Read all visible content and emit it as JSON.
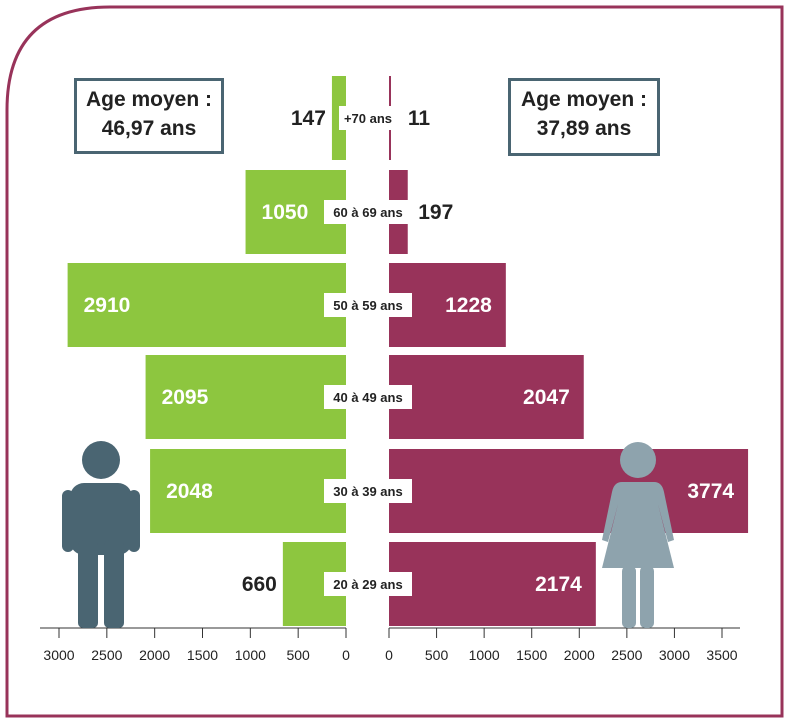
{
  "men": {
    "average_label": "Age moyen :",
    "average_value": "46,97 ans"
  },
  "women": {
    "average_label": "Age moyen :",
    "average_value": "37,89 ans"
  },
  "colors": {
    "men": "#8dc63f",
    "women": "#98335a",
    "frame": "#98335a",
    "box_border": "#4a6572",
    "men_icon": "#4a6572",
    "women_icon": "#8ea3ad"
  },
  "icons": {
    "men": "man-icon",
    "women": "woman-icon"
  },
  "chart_data": {
    "type": "bar",
    "orientation": "horizontal",
    "categories": [
      "+70 ans",
      "60 à 69 ans",
      "50 à 59 ans",
      "40 à 49 ans",
      "30 à 39 ans",
      "20 à 29 ans"
    ],
    "series": [
      {
        "side": "left",
        "values": [
          147,
          1050,
          2910,
          2095,
          2048,
          660
        ]
      },
      {
        "side": "right",
        "values": [
          11,
          197,
          1228,
          2047,
          3774,
          2174
        ]
      }
    ],
    "left_axis": {
      "range": [
        0,
        3000
      ],
      "ticks": [
        3000,
        2500,
        2000,
        1500,
        1000,
        500,
        0
      ]
    },
    "right_axis": {
      "range": [
        0,
        3500
      ],
      "ticks": [
        0,
        500,
        1000,
        1500,
        2000,
        2500,
        3000,
        3500
      ]
    },
    "grid": false
  }
}
